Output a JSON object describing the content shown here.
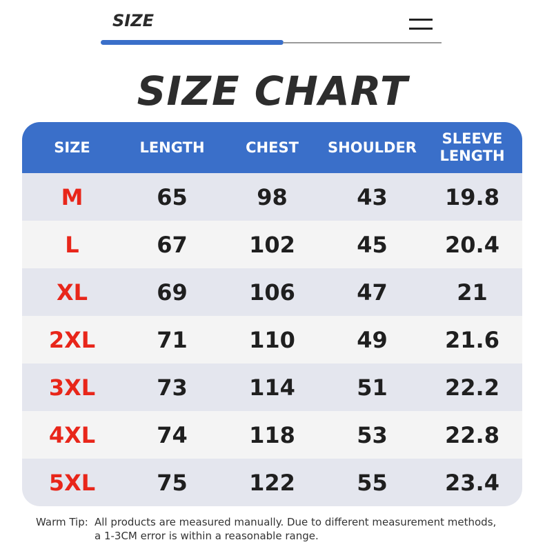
{
  "header": {
    "tab": "SIZE"
  },
  "title": "SIZE CHART",
  "table": {
    "columns": [
      "SIZE",
      "LENGTH",
      "CHEST",
      "SHOULDER",
      "SLEEVE LENGTH"
    ],
    "rows": [
      [
        "M",
        "65",
        "98",
        "43",
        "19.8"
      ],
      [
        "L",
        "67",
        "102",
        "45",
        "20.4"
      ],
      [
        "XL",
        "69",
        "106",
        "47",
        "21"
      ],
      [
        "2XL",
        "71",
        "110",
        "49",
        "21.6"
      ],
      [
        "3XL",
        "73",
        "114",
        "51",
        "22.2"
      ],
      [
        "4XL",
        "74",
        "118",
        "53",
        "22.8"
      ],
      [
        "5XL",
        "75",
        "122",
        "55",
        "23.4"
      ]
    ]
  },
  "note": {
    "label": "Warm Tip:",
    "lines": [
      "All products are measured manually. Due to different measurement methods,",
      "a 1-3CM error is within a reasonable range."
    ]
  }
}
